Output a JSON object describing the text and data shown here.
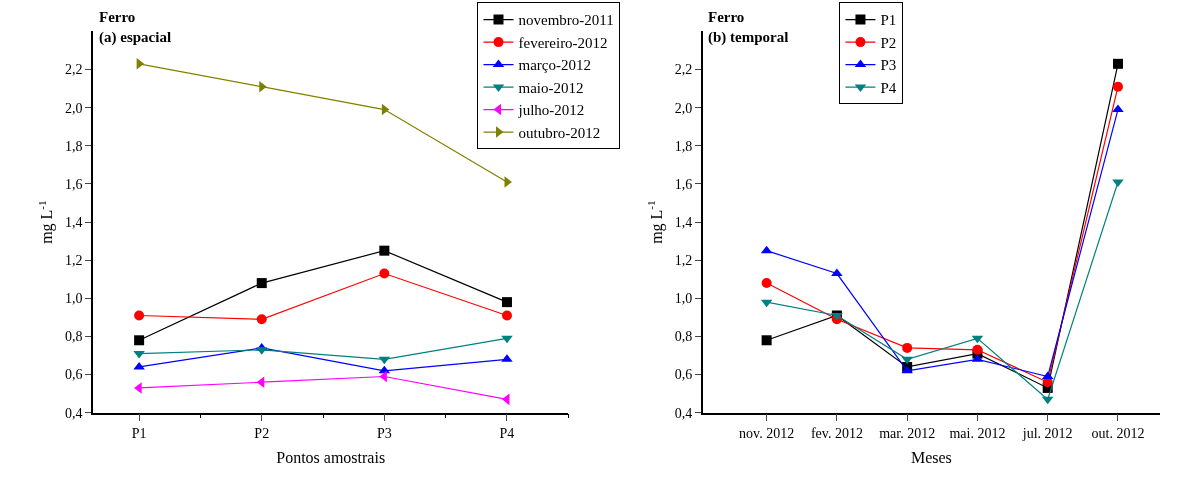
{
  "chart_data": [
    {
      "type": "line",
      "title": "Ferro",
      "subtitle": "(a) espacial",
      "xlabel": "Pontos amostrais",
      "ylabel": "mg L$^{-1}$",
      "categories": [
        "P1",
        "P2",
        "P3",
        "P4"
      ],
      "ylim": [
        0.4,
        2.4
      ],
      "yticks": [
        {
          "value": 0.4,
          "label": "0,4"
        },
        {
          "value": 0.6,
          "label": "0,6"
        },
        {
          "value": 0.8,
          "label": "0,8"
        },
        {
          "value": 1.0,
          "label": "1,0"
        },
        {
          "value": 1.2,
          "label": "1,2"
        },
        {
          "value": 1.4,
          "label": "1,4"
        },
        {
          "value": 1.6,
          "label": "1,6"
        },
        {
          "value": 1.8,
          "label": "1,8"
        },
        {
          "value": 2.0,
          "label": "2,0"
        },
        {
          "value": 2.2,
          "label": "2,2"
        }
      ],
      "legend": "top right",
      "series": [
        {
          "name": "novembro-2011",
          "color": "#000000",
          "marker": "square",
          "values": [
            0.78,
            1.08,
            1.25,
            0.98
          ]
        },
        {
          "name": "fevereiro-2012",
          "color": "#ff0000",
          "marker": "circle",
          "values": [
            0.91,
            0.89,
            1.13,
            0.91
          ]
        },
        {
          "name": "março-2012",
          "color": "#0000ff",
          "marker": "triangle-up",
          "values": [
            0.64,
            0.74,
            0.62,
            0.68
          ]
        },
        {
          "name": "maio-2012",
          "color": "#008080",
          "marker": "triangle-down",
          "values": [
            0.71,
            0.73,
            0.68,
            0.79
          ]
        },
        {
          "name": "julho-2012",
          "color": "#ff00ff",
          "marker": "triangle-left",
          "values": [
            0.53,
            0.56,
            0.59,
            0.47
          ]
        },
        {
          "name": "outubro-2012",
          "color": "#808000",
          "marker": "triangle-right",
          "values": [
            2.23,
            2.11,
            1.99,
            1.61
          ]
        }
      ]
    },
    {
      "type": "line",
      "title": "Ferro",
      "subtitle": "(b) temporal",
      "xlabel": "Meses",
      "ylabel": "mg L$^{-1}$",
      "categories": [
        "nov. 2012",
        "fev. 2012",
        "mar. 2012",
        "mai. 2012",
        "jul. 2012",
        "out. 2012"
      ],
      "ylim": [
        0.4,
        2.4
      ],
      "yticks": [
        {
          "value": 0.4,
          "label": "0,4"
        },
        {
          "value": 0.6,
          "label": "0,6"
        },
        {
          "value": 0.8,
          "label": "0,8"
        },
        {
          "value": 1.0,
          "label": "1,0"
        },
        {
          "value": 1.2,
          "label": "1,2"
        },
        {
          "value": 1.4,
          "label": "1,4"
        },
        {
          "value": 1.6,
          "label": "1,6"
        },
        {
          "value": 1.8,
          "label": "1,8"
        },
        {
          "value": 2.0,
          "label": "2,0"
        },
        {
          "value": 2.2,
          "label": "2,2"
        }
      ],
      "legend": "top",
      "series": [
        {
          "name": "P1",
          "color": "#000000",
          "marker": "square",
          "values": [
            0.78,
            0.91,
            0.64,
            0.71,
            0.53,
            2.23
          ]
        },
        {
          "name": "P2",
          "color": "#ff0000",
          "marker": "circle",
          "values": [
            1.08,
            0.89,
            0.74,
            0.73,
            0.56,
            2.11
          ]
        },
        {
          "name": "P3",
          "color": "#0000ff",
          "marker": "triangle-up",
          "values": [
            1.25,
            1.13,
            0.62,
            0.68,
            0.59,
            1.99
          ]
        },
        {
          "name": "P4",
          "color": "#008080",
          "marker": "triangle-down",
          "values": [
            0.98,
            0.91,
            0.68,
            0.79,
            0.47,
            1.61
          ]
        }
      ]
    }
  ]
}
